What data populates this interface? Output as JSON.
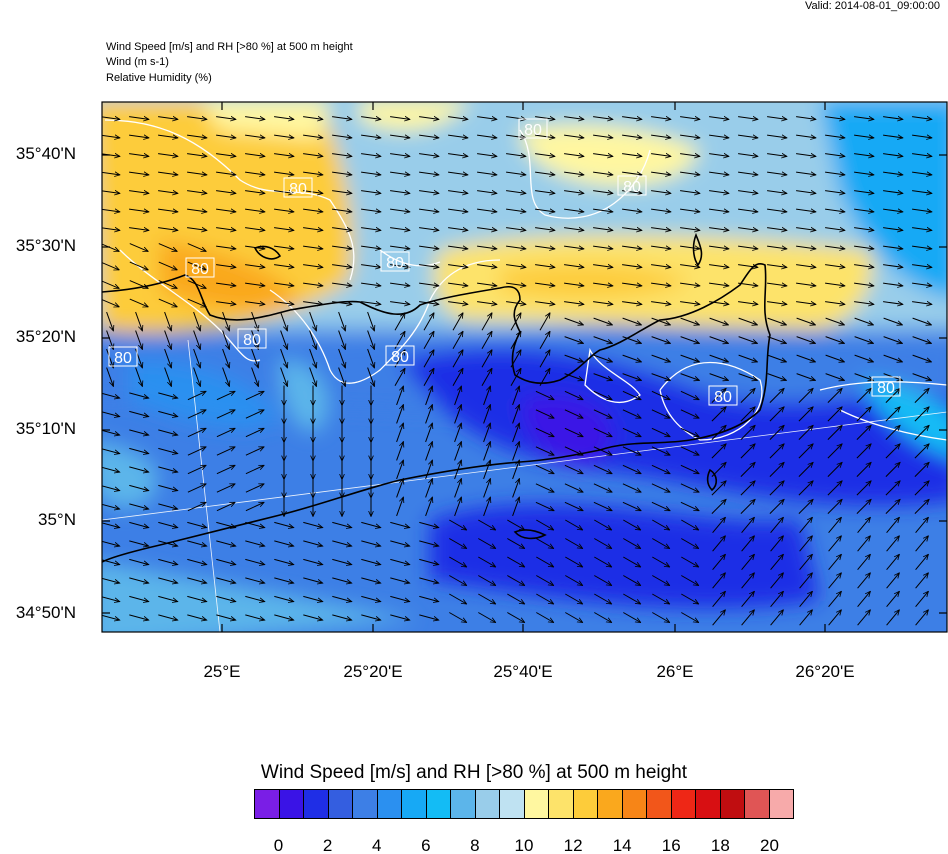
{
  "header": {
    "valid": "Valid: 2014-08-01_09:00:00",
    "line1": "Wind Speed [m/s] and RH [>80 %] at 500 m height",
    "line2": "Wind   (m s-1)",
    "line3": "Relative Humidity   (%)"
  },
  "map": {
    "lat_labels": [
      "35°40'N",
      "35°30'N",
      "35°20'N",
      "35°10'N",
      "35°N",
      "34°50'N"
    ],
    "lon_labels": [
      "25°E",
      "25°20'E",
      "25°40'E",
      "26°E",
      "26°20'E"
    ],
    "rh_contour_label": "80"
  },
  "colorbar": {
    "title": "Wind Speed [m/s] and RH [>80 %] at 500 m height",
    "colors": [
      "#7a1ee6",
      "#3a13e6",
      "#1f2ee6",
      "#345ee0",
      "#3d7fe6",
      "#2b90f0",
      "#17a9f5",
      "#13bcf5",
      "#5cb5ea",
      "#99cdea",
      "#bfe2f2",
      "#fff7a0",
      "#fde36a",
      "#fdcc3a",
      "#faa81d",
      "#f78517",
      "#f2561a",
      "#ee2716",
      "#d80f12",
      "#c00d10",
      "#e05555",
      "#f7aaaa"
    ],
    "labels": [
      "0",
      "2",
      "4",
      "6",
      "8",
      "10",
      "12",
      "14",
      "16",
      "18",
      "20"
    ]
  }
}
